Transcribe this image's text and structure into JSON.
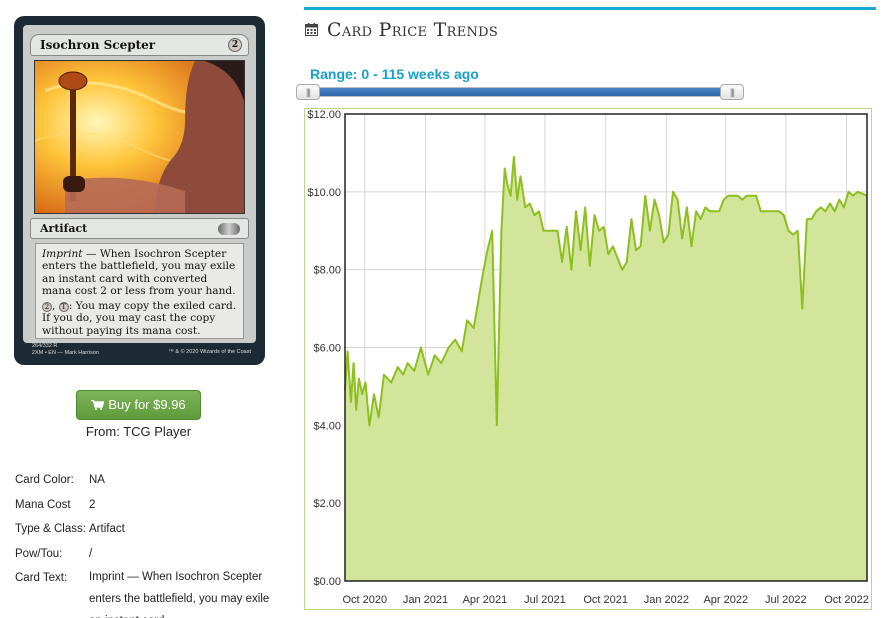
{
  "card": {
    "name": "Isochron Scepter",
    "cost_symbol": "2",
    "type_line": "Artifact",
    "rules_text_1_keyword": "Imprint",
    "rules_text_1": " — When Isochron Scepter enters the battlefield, you may exile an instant card with converted mana cost 2 or less from your hand.",
    "rules_cost_1": "2",
    "rules_cost_2": "T",
    "rules_text_2": ": You may copy the exiled card. If you do, you may cast the copy without paying its mana cost.",
    "collector_line_1": "264/332 R",
    "collector_line_2": "2XM • EN",
    "artist": "Mark Harrison",
    "copyright": "™ & © 2020 Wizards of the Coast"
  },
  "buy": {
    "label": "Buy for $9.96",
    "icon": "shopping-cart-icon",
    "from": "From: TCG Player"
  },
  "details": {
    "rows": [
      {
        "label": "Card Color:",
        "value": "NA"
      },
      {
        "label": "Mana Cost",
        "value": "2"
      },
      {
        "label": "Type & Class:",
        "value": "Artifact"
      },
      {
        "label": "Pow/Tou:",
        "value": "/"
      },
      {
        "label": "Card Text:",
        "value": "Imprint — When Isochron Scepter enters the battlefield, you may exile an instant card"
      }
    ]
  },
  "section": {
    "title": "Card Price Trends",
    "icon": "calendar-icon"
  },
  "range": {
    "label": "Range: 0 - 115 weeks ago",
    "min_weeks": 0,
    "max_weeks": 115
  },
  "colors": {
    "accent": "#19a8cf",
    "buy_green": "#6aa84a",
    "chart_line": "#8dbf1e",
    "chart_fill": "#d3e59b"
  },
  "chart_data": {
    "type": "area",
    "title": "",
    "xlabel": "",
    "ylabel": "",
    "ylim": [
      0,
      12
    ],
    "y_ticks": [
      "$0.00",
      "$2.00",
      "$4.00",
      "$6.00",
      "$8.00",
      "$10.00",
      "$12.00"
    ],
    "x_ticks": [
      "Oct 2020",
      "Jan 2021",
      "Apr 2021",
      "Jul 2021",
      "Oct 2021",
      "Jan 2022",
      "Apr 2022",
      "Jul 2022",
      "Oct 2022"
    ],
    "grid": true,
    "series": [
      {
        "x": [
          "2020-09-01",
          "2020-09-05",
          "2020-09-10",
          "2020-09-14",
          "2020-09-18",
          "2020-09-22",
          "2020-09-27",
          "2020-10-02",
          "2020-10-08",
          "2020-10-15",
          "2020-10-22",
          "2020-10-30",
          "2020-11-10",
          "2020-11-20",
          "2020-11-28",
          "2020-12-05",
          "2020-12-15",
          "2020-12-25",
          "2021-01-05",
          "2021-01-15",
          "2021-01-25",
          "2021-02-05",
          "2021-02-15",
          "2021-02-25",
          "2021-03-05",
          "2021-03-15",
          "2021-03-22",
          "2021-03-29",
          "2021-04-05",
          "2021-04-12",
          "2021-04-19",
          "2021-04-26",
          "2021-05-01",
          "2021-05-05",
          "2021-05-10",
          "2021-05-15",
          "2021-05-20",
          "2021-05-25",
          "2021-06-01",
          "2021-06-08",
          "2021-06-15",
          "2021-06-22",
          "2021-06-29",
          "2021-07-06",
          "2021-07-13",
          "2021-07-20",
          "2021-07-27",
          "2021-08-03",
          "2021-08-10",
          "2021-08-17",
          "2021-08-24",
          "2021-08-31",
          "2021-09-07",
          "2021-09-14",
          "2021-09-21",
          "2021-09-28",
          "2021-10-05",
          "2021-10-12",
          "2021-10-19",
          "2021-10-26",
          "2021-11-02",
          "2021-11-09",
          "2021-11-16",
          "2021-11-23",
          "2021-11-30",
          "2021-12-07",
          "2021-12-14",
          "2021-12-21",
          "2021-12-28",
          "2022-01-04",
          "2022-01-11",
          "2022-01-18",
          "2022-01-25",
          "2022-02-01",
          "2022-02-08",
          "2022-02-15",
          "2022-02-22",
          "2022-03-01",
          "2022-03-08",
          "2022-03-15",
          "2022-03-22",
          "2022-03-29",
          "2022-04-05",
          "2022-04-12",
          "2022-04-19",
          "2022-04-26",
          "2022-05-03",
          "2022-05-10",
          "2022-05-17",
          "2022-05-24",
          "2022-05-31",
          "2022-06-07",
          "2022-06-14",
          "2022-06-21",
          "2022-06-28",
          "2022-07-05",
          "2022-07-12",
          "2022-07-19",
          "2022-07-26",
          "2022-08-02",
          "2022-08-09",
          "2022-08-16",
          "2022-08-23",
          "2022-08-30",
          "2022-09-06",
          "2022-09-13",
          "2022-09-20",
          "2022-09-27",
          "2022-10-04",
          "2022-10-11",
          "2022-10-18",
          "2022-10-25"
        ],
        "values": [
          4.9,
          5.9,
          4.6,
          5.6,
          4.4,
          5.2,
          4.8,
          5.1,
          4.0,
          4.8,
          4.2,
          5.3,
          5.1,
          5.5,
          5.3,
          5.6,
          5.4,
          6.0,
          5.3,
          5.8,
          5.6,
          6.0,
          6.2,
          5.9,
          6.7,
          6.5,
          7.2,
          7.9,
          8.5,
          9.0,
          4.0,
          9.0,
          10.6,
          10.2,
          9.9,
          10.9,
          9.8,
          10.4,
          9.6,
          9.7,
          9.4,
          9.5,
          9.0,
          9.0,
          9.0,
          9.0,
          8.2,
          9.1,
          8.0,
          9.5,
          8.5,
          9.6,
          8.1,
          9.4,
          9.0,
          9.1,
          8.4,
          8.6,
          8.3,
          8.0,
          8.2,
          9.3,
          8.5,
          8.6,
          9.9,
          9.0,
          9.8,
          9.4,
          8.7,
          8.9,
          10.0,
          9.8,
          8.8,
          9.6,
          8.6,
          9.5,
          9.3,
          9.6,
          9.5,
          9.5,
          9.5,
          9.8,
          9.9,
          9.9,
          9.9,
          9.8,
          9.9,
          9.9,
          9.9,
          9.5,
          9.5,
          9.5,
          9.5,
          9.5,
          9.4,
          9.0,
          8.9,
          9.0,
          7.0,
          9.3,
          9.3,
          9.5,
          9.6,
          9.5,
          9.7,
          9.5,
          9.8,
          9.6,
          10.0,
          9.9,
          10.0,
          9.9
        ]
      }
    ]
  }
}
